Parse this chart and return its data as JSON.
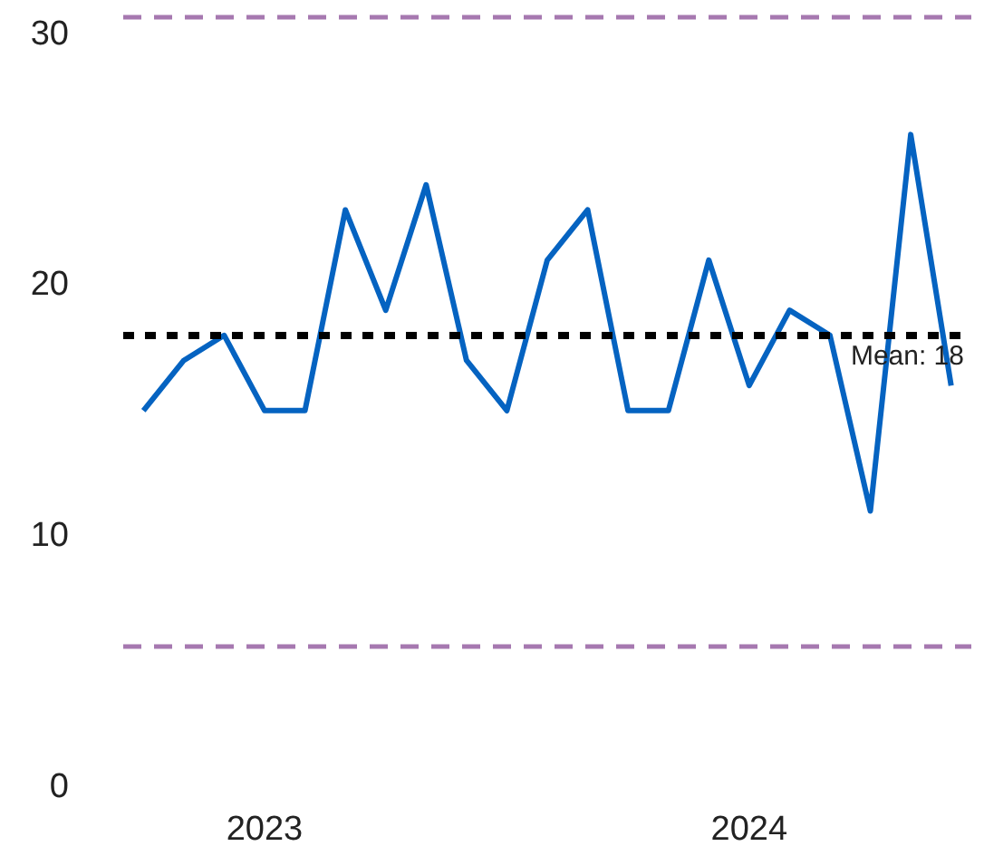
{
  "chart_data": {
    "type": "line",
    "categories": [
      null,
      null,
      null,
      "2023",
      null,
      null,
      null,
      null,
      null,
      null,
      null,
      null,
      null,
      null,
      null,
      "2024",
      null,
      null,
      null,
      null,
      null
    ],
    "series": [
      {
        "color": "#0563c1",
        "values": [
          15,
          17,
          18,
          15,
          15,
          23,
          19,
          24,
          17,
          15,
          21,
          23,
          15,
          15,
          21,
          16,
          19,
          18,
          11,
          26,
          16
        ]
      }
    ],
    "ylim": [
      0,
      31
    ],
    "yticks": [
      0,
      10,
      20,
      30
    ],
    "grid": false,
    "marker": "none",
    "line_style": "solid",
    "ref_lines": [
      {
        "axis": "y",
        "value": 18,
        "label": "Mean: 18",
        "color": "#000000",
        "line_style": "dotted"
      },
      {
        "axis": "y",
        "value": 30.7,
        "label": null,
        "color": "#a678b0",
        "line_style": "dashed"
      },
      {
        "axis": "y",
        "value": 5.6,
        "label": null,
        "color": "#a678b0",
        "line_style": "dashed"
      }
    ]
  }
}
